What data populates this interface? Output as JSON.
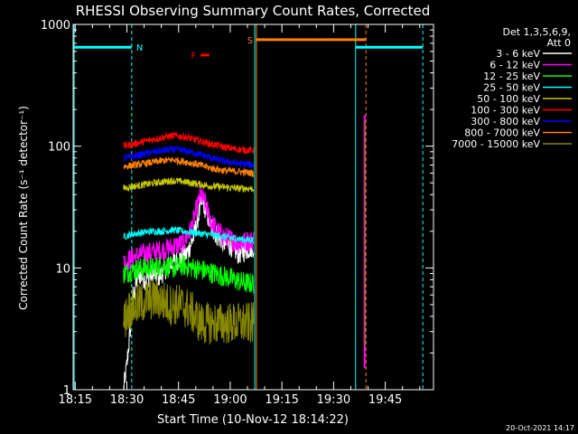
{
  "chart_data": {
    "type": "line",
    "title": "RHESSI Observing Summary Count Rates, Corrected",
    "xlabel": "Start Time (10-Nov-12 18:14:22)",
    "ylabel": "Corrected Count Rate (s⁻¹ detector⁻¹)",
    "yscale": "log",
    "ylim": [
      1,
      1000
    ],
    "xlim": [
      "18:14:22",
      "19:59:00"
    ],
    "xlim_minutes": [
      0,
      104.6
    ],
    "x_ticks": [
      {
        "label": "18:15",
        "minute": 0.6
      },
      {
        "label": "18:30",
        "minute": 15.6
      },
      {
        "label": "18:45",
        "minute": 30.6
      },
      {
        "label": "19:00",
        "minute": 45.6
      },
      {
        "label": "19:15",
        "minute": 60.6
      },
      {
        "label": "19:30",
        "minute": 75.6
      },
      {
        "label": "19:45",
        "minute": 90.6
      }
    ],
    "y_ticks": [
      {
        "label": "1",
        "value": 1
      },
      {
        "label": "10",
        "value": 10
      },
      {
        "label": "100",
        "value": 100
      },
      {
        "label": "1000",
        "value": 1000
      }
    ],
    "legend": {
      "position": "top-right",
      "header_line1": "Det 1,3,5,6,9,",
      "header_line2": "Att 0"
    },
    "series": [
      {
        "name": "3 - 6 keV",
        "color": "#ffffff",
        "segment": [
          14.6,
          52.4
        ],
        "points": [
          [
            14.6,
            1
          ],
          [
            15.5,
            1.5
          ],
          [
            16.5,
            3
          ],
          [
            17.5,
            6
          ],
          [
            19,
            9
          ],
          [
            21,
            8
          ],
          [
            23,
            9
          ],
          [
            25,
            8.5
          ],
          [
            27,
            10
          ],
          [
            29,
            11
          ],
          [
            31,
            12
          ],
          [
            33,
            13
          ],
          [
            35,
            18
          ],
          [
            36.5,
            28
          ],
          [
            37.5,
            36
          ],
          [
            38.5,
            30
          ],
          [
            40,
            22
          ],
          [
            42,
            18
          ],
          [
            44,
            16
          ],
          [
            46,
            15
          ],
          [
            48,
            13
          ],
          [
            50,
            14
          ],
          [
            52.4,
            15
          ]
        ]
      },
      {
        "name": "6 - 12 keV",
        "color": "#ff00ff",
        "segment": [
          14.6,
          52.4
        ],
        "points": [
          [
            14.6,
            11
          ],
          [
            17,
            12
          ],
          [
            20,
            13
          ],
          [
            23,
            13.5
          ],
          [
            26,
            14
          ],
          [
            29,
            15
          ],
          [
            32,
            16
          ],
          [
            34,
            20
          ],
          [
            35.5,
            28
          ],
          [
            37,
            40
          ],
          [
            38.5,
            33
          ],
          [
            40,
            24
          ],
          [
            42,
            20
          ],
          [
            44,
            18
          ],
          [
            46,
            17
          ],
          [
            48,
            16
          ],
          [
            50,
            16.5
          ],
          [
            52.4,
            17
          ]
        ]
      },
      {
        "name": "12 - 25 keV",
        "color": "#00ff00",
        "segment": [
          14.6,
          52.4
        ],
        "points": [
          [
            14.6,
            9
          ],
          [
            17,
            9.5
          ],
          [
            20,
            10
          ],
          [
            23,
            10
          ],
          [
            26,
            10.5
          ],
          [
            29,
            10
          ],
          [
            32,
            10.5
          ],
          [
            35,
            10
          ],
          [
            38,
            9.5
          ],
          [
            41,
            9
          ],
          [
            44,
            8.5
          ],
          [
            47,
            8
          ],
          [
            50,
            7.5
          ],
          [
            52.4,
            7.5
          ]
        ]
      },
      {
        "name": "25 - 50 keV",
        "color": "#00ffff",
        "segment": [
          14.6,
          52.4
        ],
        "points": [
          [
            14.6,
            18
          ],
          [
            17,
            19
          ],
          [
            20,
            19.5
          ],
          [
            23,
            20
          ],
          [
            26,
            20
          ],
          [
            29,
            20.5
          ],
          [
            32,
            20
          ],
          [
            35,
            19.5
          ],
          [
            38,
            19
          ],
          [
            41,
            18.5
          ],
          [
            44,
            18
          ],
          [
            47,
            17.5
          ],
          [
            50,
            17
          ],
          [
            52.4,
            17
          ]
        ]
      },
      {
        "name": "50 - 100 keV",
        "color": "#c8c800",
        "segment": [
          14.6,
          52.4
        ],
        "points": [
          [
            14.6,
            45
          ],
          [
            18,
            47
          ],
          [
            22,
            49
          ],
          [
            26,
            51
          ],
          [
            29,
            52
          ],
          [
            32,
            51
          ],
          [
            36,
            49
          ],
          [
            40,
            47
          ],
          [
            44,
            46
          ],
          [
            48,
            45
          ],
          [
            52.4,
            45
          ]
        ]
      },
      {
        "name": "100 - 300 keV",
        "color": "#ff0000",
        "segment": [
          14.6,
          52.4
        ],
        "points": [
          [
            14.6,
            100
          ],
          [
            18,
            105
          ],
          [
            22,
            112
          ],
          [
            26,
            118
          ],
          [
            29,
            122
          ],
          [
            32,
            120
          ],
          [
            36,
            112
          ],
          [
            40,
            104
          ],
          [
            44,
            98
          ],
          [
            48,
            94
          ],
          [
            52.4,
            92
          ]
        ]
      },
      {
        "name": "300 - 800 keV",
        "color": "#0000ff",
        "segment": [
          14.6,
          52.4
        ],
        "points": [
          [
            14.6,
            80
          ],
          [
            18,
            83
          ],
          [
            22,
            88
          ],
          [
            26,
            92
          ],
          [
            29,
            94
          ],
          [
            32,
            92
          ],
          [
            36,
            87
          ],
          [
            40,
            80
          ],
          [
            44,
            75
          ],
          [
            48,
            72
          ],
          [
            52.4,
            70
          ]
        ]
      },
      {
        "name": "800 - 7000 keV",
        "color": "#ff8000",
        "segment": [
          14.6,
          52.4
        ],
        "points": [
          [
            14.6,
            68
          ],
          [
            18,
            70
          ],
          [
            22,
            73
          ],
          [
            26,
            76
          ],
          [
            29,
            77
          ],
          [
            32,
            75
          ],
          [
            36,
            71
          ],
          [
            40,
            66
          ],
          [
            44,
            63
          ],
          [
            48,
            62
          ],
          [
            52.4,
            60
          ]
        ]
      },
      {
        "name": "7000 - 15000 keV",
        "color": "#888800",
        "segment": [
          14.6,
          52.4
        ],
        "points": [
          [
            14.6,
            3.5
          ],
          [
            16,
            4.5
          ],
          [
            19,
            5
          ],
          [
            22,
            5.5
          ],
          [
            25,
            5.5
          ],
          [
            28,
            5
          ],
          [
            31,
            5
          ],
          [
            34,
            4.5
          ],
          [
            37,
            3.5
          ],
          [
            40,
            3.5
          ],
          [
            44,
            3.5
          ],
          [
            48,
            3.5
          ],
          [
            52.4,
            3.5
          ]
        ]
      }
    ],
    "late_spike": {
      "minute": 84.6,
      "low": 1.5,
      "high": 180
    },
    "annotations": [
      {
        "label": "N",
        "color": "#00ffff",
        "line_minute": 17.0,
        "start_minute": 0.0,
        "end_minute": 17.0,
        "level": 650
      },
      {
        "label": "N",
        "color": "#00ffff",
        "line_minute": 101.5,
        "start_minute": 82.0,
        "end_minute": 101.5,
        "level": 650
      },
      {
        "label": "S",
        "color": "#ff8000",
        "line_minute": 85.0,
        "start_minute": 53.0,
        "end_minute": 85.0,
        "level": 750
      },
      {
        "label": "F",
        "color": "#ff0000",
        "line_minute": null,
        "start_minute": 37.0,
        "end_minute": 39.5,
        "level": 560
      }
    ],
    "vertical_markers": [
      {
        "minute": 0.3,
        "color": "#00ffff",
        "style": "solid"
      },
      {
        "minute": 17.0,
        "color": "#00ffff",
        "style": "dashed"
      },
      {
        "minute": 52.7,
        "color": "#00ffff",
        "style": "solid"
      },
      {
        "minute": 53.2,
        "color": "#ff8000",
        "style": "solid"
      },
      {
        "minute": 82.0,
        "color": "#00ffff",
        "style": "solid"
      },
      {
        "minute": 85.0,
        "color": "#ff8000",
        "style": "dashed"
      },
      {
        "minute": 101.5,
        "color": "#00ffff",
        "style": "dashed"
      }
    ]
  },
  "footer": {
    "timestamp": "20-Oct-2021 14:17"
  }
}
